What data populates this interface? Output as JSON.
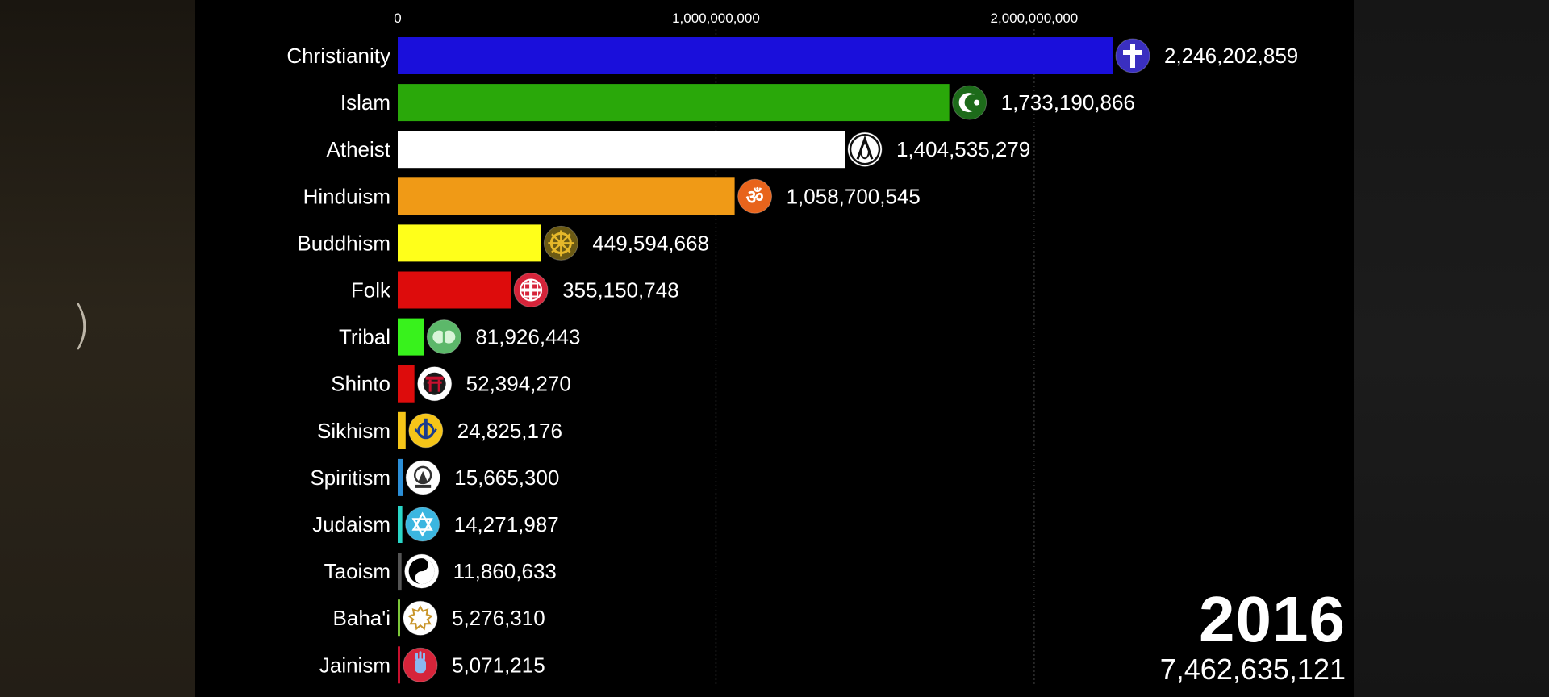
{
  "chart_data": {
    "type": "bar",
    "orientation": "horizontal",
    "xlim": [
      0,
      2246202859
    ],
    "x_ticks": [
      {
        "value": 0,
        "label": "0"
      },
      {
        "value": 1000000000,
        "label": "1,000,000,000"
      },
      {
        "value": 2000000000,
        "label": "2,000,000,000"
      }
    ],
    "grid": true,
    "year": "2016",
    "total": "7,462,635,121",
    "bars": [
      {
        "category": "Christianity",
        "value": 2246202859,
        "value_label": "2,246,202,859",
        "color": "#1a0fdb",
        "icon": "christian-cross-icon",
        "icon_bg": "#3a2fc0",
        "icon_fg": "#ffffff"
      },
      {
        "category": "Islam",
        "value": 1733190866,
        "value_label": "1,733,190,866",
        "color": "#2aa80a",
        "icon": "crescent-star-icon",
        "icon_bg": "#1d6b1a",
        "icon_fg": "#ffffff"
      },
      {
        "category": "Atheist",
        "value": 1404535279,
        "value_label": "1,404,535,279",
        "color": "#ffffff",
        "icon": "atheist-atom-icon",
        "icon_bg": "#ffffff",
        "icon_fg": "#111111"
      },
      {
        "category": "Hinduism",
        "value": 1058700545,
        "value_label": "1,058,700,545",
        "color": "#f09a16",
        "icon": "om-icon",
        "icon_bg": "#e8641c",
        "icon_fg": "#ffffff"
      },
      {
        "category": "Buddhism",
        "value": 449594668,
        "value_label": "449,594,668",
        "color": "#ffff1a",
        "icon": "dharma-wheel-icon",
        "icon_bg": "#6b5a14",
        "icon_fg": "#e6b82a"
      },
      {
        "category": "Folk",
        "value": 355150748,
        "value_label": "355,150,748",
        "color": "#dd0c0c",
        "icon": "folk-symbol-icon",
        "icon_bg": "#d6243a",
        "icon_fg": "#ffffff"
      },
      {
        "category": "Tribal",
        "value": 81926443,
        "value_label": "81,926,443",
        "color": "#38f21c",
        "icon": "tree-of-life-icon",
        "icon_bg": "#5cb86a",
        "icon_fg": "#d8f5d8"
      },
      {
        "category": "Shinto",
        "value": 52394270,
        "value_label": "52,394,270",
        "color": "#dd0c0c",
        "icon": "torii-gate-icon",
        "icon_bg": "#ffffff",
        "icon_fg": "#c8102e"
      },
      {
        "category": "Sikhism",
        "value": 24825176,
        "value_label": "24,825,176",
        "color": "#f5c518",
        "icon": "khanda-icon",
        "icon_bg": "#f5c518",
        "icon_fg": "#1a3c8c"
      },
      {
        "category": "Spiritism",
        "value": 15665300,
        "value_label": "15,665,300",
        "color": "#2b8fd8",
        "icon": "spiritism-icon",
        "icon_bg": "#ffffff",
        "icon_fg": "#333333"
      },
      {
        "category": "Judaism",
        "value": 14271987,
        "value_label": "14,271,987",
        "color": "#2ad6c8",
        "icon": "star-of-david-icon",
        "icon_bg": "#3bb6e0",
        "icon_fg": "#ffffff"
      },
      {
        "category": "Taoism",
        "value": 11860633,
        "value_label": "11,860,633",
        "color": "#555555",
        "icon": "yin-yang-icon",
        "icon_bg": "#ffffff",
        "icon_fg": "#000000"
      },
      {
        "category": "Baha'i",
        "value": 5276310,
        "value_label": "5,276,310",
        "color": "#7dc83a",
        "icon": "bahai-star-icon",
        "icon_bg": "#ffffff",
        "icon_fg": "#c8952a"
      },
      {
        "category": "Jainism",
        "value": 5071215,
        "value_label": "5,071,215",
        "color": "#c8102e",
        "icon": "jain-hand-icon",
        "icon_bg": "#d6243a",
        "icon_fg": "#8ab8f0"
      }
    ]
  }
}
